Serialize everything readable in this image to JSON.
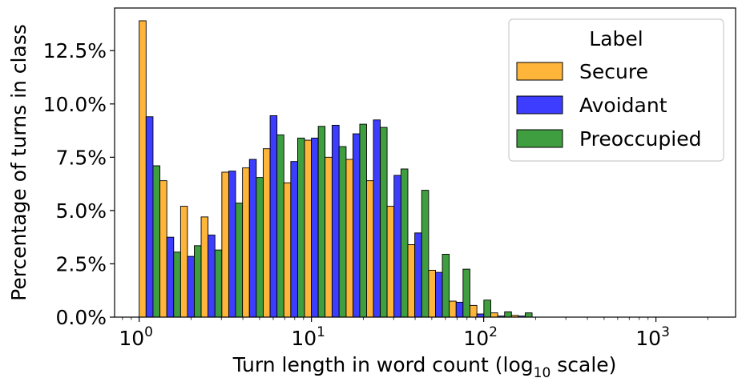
{
  "chart_data": {
    "type": "bar",
    "xlabel": "Turn length in word count (log",
    "xlabel_sub": "10",
    "xlabel_suffix": " scale)",
    "ylabel": "Percentage of turns in class",
    "x_scale": "log10",
    "xlim": [
      0.72,
      2900
    ],
    "ylim": [
      0,
      14.5
    ],
    "y_ticks": [
      {
        "value": 0.0,
        "label": "0.0%"
      },
      {
        "value": 2.5,
        "label": "2.5%"
      },
      {
        "value": 5.0,
        "label": "5.0%"
      },
      {
        "value": 7.5,
        "label": "7.5%"
      },
      {
        "value": 10.0,
        "label": "10.0%"
      },
      {
        "value": 12.5,
        "label": "12.5%"
      }
    ],
    "x_major_ticks": [
      {
        "value": 1,
        "base": "10",
        "exp": "0"
      },
      {
        "value": 10,
        "base": "10",
        "exp": "1"
      },
      {
        "value": 100,
        "base": "10",
        "exp": "2"
      },
      {
        "value": 1000,
        "base": "10",
        "exp": "3"
      }
    ],
    "bin_edges": [
      1.0,
      1.32,
      1.74,
      2.29,
      3.02,
      3.98,
      5.25,
      6.92,
      9.12,
      12.0,
      15.9,
      20.9,
      27.5,
      36.3,
      47.9,
      63.1,
      83.2,
      110,
      145,
      191,
      251,
      331,
      437,
      575,
      759,
      1000,
      1320,
      1740,
      2290
    ],
    "series": [
      {
        "name": "Secure",
        "color": "#FFB43A",
        "values": [
          13.9,
          6.4,
          5.2,
          4.7,
          6.8,
          7.0,
          7.9,
          6.3,
          8.3,
          7.5,
          7.4,
          6.4,
          5.2,
          3.4,
          2.2,
          0.75,
          0.55,
          0.2,
          0.08,
          0.0,
          0.0,
          0.0,
          0.0,
          0.0,
          0.0,
          0.0,
          0.0,
          0.0
        ]
      },
      {
        "name": "Avoidant",
        "color": "#3D3DFF",
        "values": [
          9.4,
          3.75,
          2.85,
          3.85,
          6.85,
          7.4,
          9.45,
          7.3,
          8.4,
          9.0,
          8.6,
          9.25,
          6.65,
          3.95,
          2.1,
          0.7,
          0.15,
          0.05,
          0.05,
          0.0,
          0.0,
          0.0,
          0.0,
          0.0,
          0.0,
          0.0,
          0.0,
          0.0
        ]
      },
      {
        "name": "Preoccupied",
        "color": "#3F9E3F",
        "values": [
          7.1,
          3.05,
          3.35,
          3.15,
          5.35,
          6.55,
          8.55,
          8.4,
          8.95,
          8.0,
          9.05,
          8.9,
          6.95,
          5.95,
          2.95,
          2.25,
          0.8,
          0.25,
          0.2,
          0.0,
          0.0,
          0.0,
          0.0,
          0.0,
          0.0,
          0.0,
          0.0,
          0.0
        ]
      }
    ],
    "legend": {
      "title": "Label",
      "position": "top-right"
    },
    "grid": false
  }
}
